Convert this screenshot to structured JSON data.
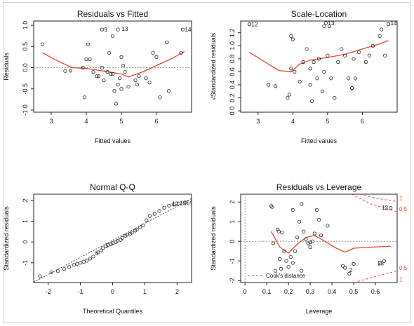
{
  "chart_data": [
    {
      "id": "rvf",
      "type": "scatter",
      "title": "Residuals vs Fitted",
      "xlabel": "Fitted values",
      "ylabel": "Residuals",
      "xlim": [
        2.5,
        7.0
      ],
      "ylim": [
        -1.05,
        1.1
      ],
      "xticks": [
        3,
        4,
        5,
        6
      ],
      "yticks": [
        -1.0,
        -0.5,
        0.0,
        0.5,
        1.0
      ],
      "ref_line": 0,
      "points": [
        [
          2.75,
          0.55
        ],
        [
          3.4,
          -0.08
        ],
        [
          3.55,
          -0.07
        ],
        [
          3.9,
          0.0
        ],
        [
          3.95,
          -0.7
        ],
        [
          4.0,
          0.2
        ],
        [
          4.05,
          0.55
        ],
        [
          4.1,
          0.2
        ],
        [
          4.2,
          -0.1
        ],
        [
          4.3,
          -0.2
        ],
        [
          4.35,
          -0.2
        ],
        [
          4.45,
          0.0
        ],
        [
          4.45,
          0.9
        ],
        [
          4.5,
          -0.3
        ],
        [
          4.6,
          -0.1
        ],
        [
          4.65,
          0.35
        ],
        [
          4.7,
          -0.15
        ],
        [
          4.75,
          -0.15
        ],
        [
          4.8,
          -0.55
        ],
        [
          4.85,
          -0.85
        ],
        [
          4.9,
          -0.4
        ],
        [
          4.9,
          0.9
        ],
        [
          4.95,
          -0.25
        ],
        [
          5.0,
          0.25
        ],
        [
          5.0,
          -0.5
        ],
        [
          5.05,
          0.05
        ],
        [
          5.1,
          -0.1
        ],
        [
          5.2,
          -0.45
        ],
        [
          5.4,
          -0.3
        ],
        [
          5.45,
          -0.4
        ],
        [
          5.5,
          -0.2
        ],
        [
          5.7,
          -0.25
        ],
        [
          5.8,
          -0.35
        ],
        [
          5.9,
          0.35
        ],
        [
          6.0,
          0.25
        ],
        [
          6.1,
          -0.7
        ],
        [
          6.3,
          0.6
        ],
        [
          6.35,
          -0.55
        ],
        [
          6.7,
          0.35
        ],
        [
          6.75,
          0.9
        ],
        [
          4.75,
          0.75
        ]
      ],
      "smooth": [
        [
          2.75,
          0.35
        ],
        [
          3.2,
          0.15
        ],
        [
          3.6,
          0.0
        ],
        [
          4.0,
          -0.02
        ],
        [
          4.5,
          -0.08
        ],
        [
          5.0,
          -0.15
        ],
        [
          5.2,
          -0.22
        ],
        [
          5.6,
          -0.1
        ],
        [
          6.0,
          0.05
        ],
        [
          6.4,
          0.2
        ],
        [
          6.8,
          0.38
        ]
      ],
      "labels": [
        {
          "text": "9",
          "x": 4.45,
          "y": 0.9
        },
        {
          "text": "13",
          "x": 4.95,
          "y": 0.92
        },
        {
          "text": "14",
          "x": 6.75,
          "y": 0.9
        }
      ]
    },
    {
      "id": "sl",
      "type": "scatter",
      "title": "Scale-Location",
      "xlabel": "Fitted values",
      "ylabel": "√Standardized residuals",
      "xlim": [
        2.5,
        7.0
      ],
      "ylim": [
        -0.02,
        1.38
      ],
      "xticks": [
        3,
        4,
        5,
        6
      ],
      "yticks": [
        0.0,
        0.2,
        0.4,
        0.6,
        0.8,
        1.0,
        1.2
      ],
      "points": [
        [
          2.75,
          1.33
        ],
        [
          3.3,
          0.4
        ],
        [
          3.5,
          0.38
        ],
        [
          3.85,
          0.2
        ],
        [
          3.9,
          0.25
        ],
        [
          3.95,
          0.65
        ],
        [
          3.95,
          1.15
        ],
        [
          4.0,
          1.1
        ],
        [
          4.05,
          0.6
        ],
        [
          4.2,
          0.45
        ],
        [
          4.3,
          0.75
        ],
        [
          4.4,
          0.95
        ],
        [
          4.5,
          0.65
        ],
        [
          4.5,
          0.4
        ],
        [
          4.55,
          0.15
        ],
        [
          4.6,
          0.75
        ],
        [
          4.7,
          0.5
        ],
        [
          4.75,
          0.8
        ],
        [
          4.85,
          0.3
        ],
        [
          4.9,
          0.6
        ],
        [
          4.9,
          1.3
        ],
        [
          4.95,
          1.35
        ],
        [
          5.0,
          0.85
        ],
        [
          5.05,
          1.3
        ],
        [
          5.1,
          0.5
        ],
        [
          5.2,
          0.2
        ],
        [
          5.3,
          0.75
        ],
        [
          5.4,
          0.95
        ],
        [
          5.5,
          0.85
        ],
        [
          5.6,
          0.5
        ],
        [
          5.7,
          0.35
        ],
        [
          5.75,
          0.8
        ],
        [
          5.8,
          0.5
        ],
        [
          5.9,
          0.9
        ],
        [
          6.1,
          0.75
        ],
        [
          6.2,
          0.85
        ],
        [
          6.3,
          1.0
        ],
        [
          6.5,
          1.15
        ],
        [
          6.55,
          1.25
        ],
        [
          6.65,
          0.85
        ],
        [
          6.75,
          1.33
        ]
      ],
      "smooth": [
        [
          2.75,
          0.9
        ],
        [
          3.2,
          0.75
        ],
        [
          3.6,
          0.62
        ],
        [
          3.95,
          0.6
        ],
        [
          4.2,
          0.72
        ],
        [
          4.5,
          0.78
        ],
        [
          5.0,
          0.82
        ],
        [
          5.5,
          0.87
        ],
        [
          6.0,
          0.95
        ],
        [
          6.5,
          1.03
        ],
        [
          6.75,
          1.08
        ]
      ],
      "labels": [
        {
          "text": "12",
          "x": 2.75,
          "y": 1.33
        },
        {
          "text": "13",
          "x": 4.95,
          "y": 1.35
        },
        {
          "text": "14",
          "x": 6.75,
          "y": 1.35
        }
      ]
    },
    {
      "id": "qq",
      "type": "scatter",
      "title": "Normal Q-Q",
      "xlabel": "Theoretical Quantiles",
      "ylabel": "Standardized residuals",
      "xlim": [
        -2.45,
        2.45
      ],
      "ylim": [
        -1.95,
        2.3
      ],
      "xticks": [
        -2,
        -1,
        0,
        1,
        2
      ],
      "yticks": [
        -1,
        0,
        1,
        2
      ],
      "points": [
        [
          -2.25,
          -1.65
        ],
        [
          -1.9,
          -1.45
        ],
        [
          -1.7,
          -1.4
        ],
        [
          -1.5,
          -1.3
        ],
        [
          -1.35,
          -1.2
        ],
        [
          -1.2,
          -1.1
        ],
        [
          -1.1,
          -1.05
        ],
        [
          -1.0,
          -1.0
        ],
        [
          -0.9,
          -0.95
        ],
        [
          -0.8,
          -0.9
        ],
        [
          -0.7,
          -0.8
        ],
        [
          -0.6,
          -0.7
        ],
        [
          -0.5,
          -0.55
        ],
        [
          -0.45,
          -0.5
        ],
        [
          -0.35,
          -0.4
        ],
        [
          -0.3,
          -0.3
        ],
        [
          -0.2,
          -0.2
        ],
        [
          -0.15,
          -0.15
        ],
        [
          -0.05,
          -0.1
        ],
        [
          0.0,
          -0.05
        ],
        [
          0.1,
          0.0
        ],
        [
          0.15,
          0.05
        ],
        [
          0.25,
          0.1
        ],
        [
          0.3,
          0.2
        ],
        [
          0.4,
          0.3
        ],
        [
          0.45,
          0.35
        ],
        [
          0.55,
          0.4
        ],
        [
          0.6,
          0.45
        ],
        [
          0.7,
          0.55
        ],
        [
          0.75,
          0.6
        ],
        [
          0.85,
          0.7
        ],
        [
          0.95,
          0.8
        ],
        [
          1.05,
          1.05
        ],
        [
          1.15,
          1.25
        ],
        [
          1.3,
          1.35
        ],
        [
          1.45,
          1.5
        ],
        [
          1.6,
          1.65
        ],
        [
          1.75,
          1.75
        ],
        [
          1.9,
          1.8
        ],
        [
          2.05,
          1.85
        ],
        [
          2.25,
          1.9
        ]
      ],
      "ref_line": {
        "slope": 0.82,
        "intercept": 0.08
      },
      "labels": [
        {
          "text": "12",
          "x": 1.78,
          "y": 1.85
        },
        {
          "text": "13",
          "x": 2.02,
          "y": 1.88
        },
        {
          "text": "14",
          "x": 2.22,
          "y": 1.92
        }
      ]
    },
    {
      "id": "rvl",
      "type": "scatter",
      "title": "Residuals vs Leverage",
      "xlabel": "Leverage",
      "ylabel": "Standardized residuals",
      "xlim": [
        -0.02,
        0.7
      ],
      "ylim": [
        -2.1,
        2.4
      ],
      "xticks": [
        0.0,
        0.1,
        0.2,
        0.3,
        0.4,
        0.5,
        0.6
      ],
      "yticks": [
        -2,
        -1,
        0,
        1,
        2
      ],
      "ref_line": 0,
      "points": [
        [
          0.12,
          1.8
        ],
        [
          0.125,
          1.75
        ],
        [
          0.13,
          -0.1
        ],
        [
          0.14,
          -1.5
        ],
        [
          0.15,
          0.6
        ],
        [
          0.155,
          0.5
        ],
        [
          0.16,
          -0.9
        ],
        [
          0.165,
          -1.4
        ],
        [
          0.17,
          0.45
        ],
        [
          0.18,
          -0.5
        ],
        [
          0.19,
          -1.0
        ],
        [
          0.2,
          -1.3
        ],
        [
          0.21,
          -0.8
        ],
        [
          0.22,
          -1.1
        ],
        [
          0.22,
          1.6
        ],
        [
          0.23,
          -0.5
        ],
        [
          0.24,
          0.2
        ],
        [
          0.25,
          1.0
        ],
        [
          0.26,
          -1.5
        ],
        [
          0.26,
          1.9
        ],
        [
          0.27,
          0.5
        ],
        [
          0.28,
          0.1
        ],
        [
          0.29,
          -0.1
        ],
        [
          0.3,
          -0.05
        ],
        [
          0.3,
          -0.3
        ],
        [
          0.31,
          0.0
        ],
        [
          0.32,
          0.4
        ],
        [
          0.33,
          1.6
        ],
        [
          0.34,
          1.1
        ],
        [
          0.35,
          0.3
        ],
        [
          0.38,
          0.8
        ],
        [
          0.45,
          -1.25
        ],
        [
          0.46,
          -1.35
        ],
        [
          0.48,
          -1.65
        ],
        [
          0.5,
          -1.15
        ],
        [
          0.62,
          -1.1
        ],
        [
          0.64,
          -1.0
        ],
        [
          0.67,
          1.7
        ]
      ],
      "smooth": [
        [
          0.12,
          0.5
        ],
        [
          0.16,
          -0.3
        ],
        [
          0.2,
          -0.6
        ],
        [
          0.24,
          -0.15
        ],
        [
          0.28,
          0.2
        ],
        [
          0.32,
          0.3
        ],
        [
          0.36,
          0.05
        ],
        [
          0.42,
          -0.35
        ],
        [
          0.46,
          -0.55
        ],
        [
          0.5,
          -0.35
        ],
        [
          0.58,
          -0.3
        ],
        [
          0.67,
          -0.25
        ]
      ],
      "cook_contours": [
        {
          "label": "1",
          "points": [
            [
              0.53,
              2.4
            ],
            [
              0.6,
              2.2
            ],
            [
              0.7,
              2.02
            ]
          ]
        },
        {
          "label": "0.5",
          "points": [
            [
              0.49,
              2.4
            ],
            [
              0.58,
              1.9
            ],
            [
              0.7,
              1.5
            ]
          ]
        },
        {
          "label": "0.5",
          "points": [
            [
              0.5,
              -2.1
            ],
            [
              0.6,
              -1.8
            ],
            [
              0.7,
              -1.5
            ]
          ]
        }
      ],
      "cook_labels": [
        {
          "text": "1",
          "x": 0.7,
          "y": 2.1
        },
        {
          "text": "0.5",
          "x": 0.7,
          "y": 1.55
        },
        {
          "text": "0.5",
          "x": 0.7,
          "y": -1.45
        },
        {
          "text": "1",
          "x": 0.7,
          "y": -2.05
        }
      ],
      "labels": [
        {
          "text": "12",
          "x": 0.62,
          "y": 1.72
        },
        {
          "text": "2",
          "x": 0.47,
          "y": -1.45
        },
        {
          "text": "23",
          "x": 0.6,
          "y": -1.12
        }
      ],
      "legend": {
        "entries": [
          "Cook's distance"
        ],
        "placement": "bottom-left"
      }
    }
  ],
  "colors": {
    "smooth": "#e8452c",
    "point": "#222222",
    "refline": "#9a9a9a",
    "cook": "#e8452c"
  }
}
